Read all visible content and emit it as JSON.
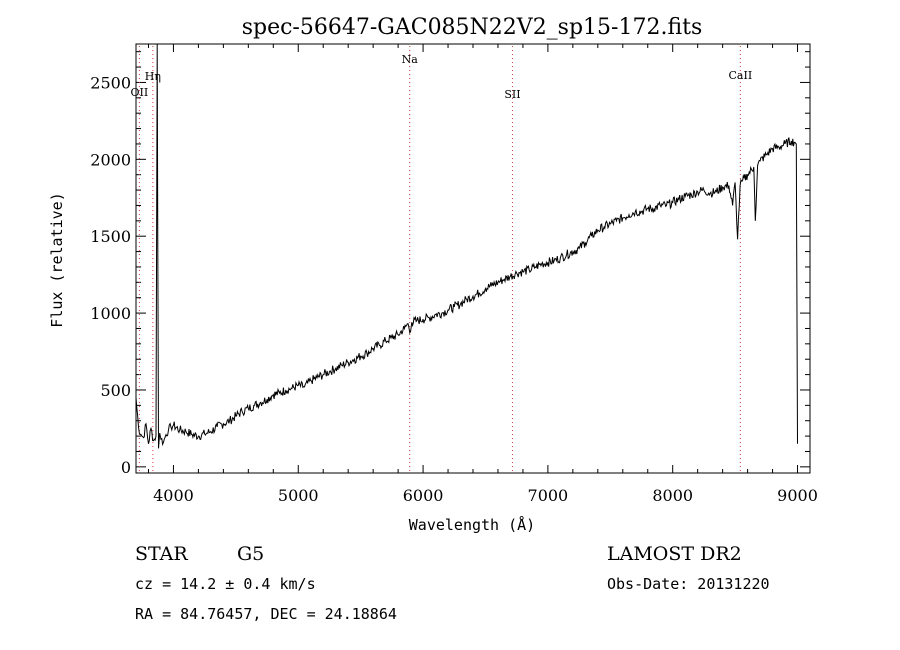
{
  "chart_data": {
    "type": "line",
    "title": "spec-56647-GAC085N22V2_sp15-172.fits",
    "xlabel": "Wavelength (Å)",
    "ylabel": "Flux (relative)",
    "xlim": [
      3700,
      9100
    ],
    "ylim": [
      -40,
      2750
    ],
    "xticks": [
      4000,
      5000,
      6000,
      7000,
      8000,
      9000
    ],
    "yticks": [
      0,
      500,
      1000,
      1500,
      2000,
      2500
    ],
    "grid": false,
    "series": [
      {
        "name": "",
        "x": [
          3700,
          3720,
          3740,
          3760,
          3780,
          3800,
          3820,
          3840,
          3860,
          3870,
          3880,
          3890,
          3900,
          3920,
          3940,
          3960,
          3980,
          4000,
          4050,
          4100,
          4150,
          4200,
          4250,
          4300,
          4350,
          4400,
          4450,
          4500,
          4550,
          4600,
          4650,
          4700,
          4750,
          4800,
          4850,
          4900,
          4950,
          5000,
          5050,
          5100,
          5150,
          5200,
          5250,
          5300,
          5350,
          5400,
          5450,
          5500,
          5550,
          5600,
          5650,
          5700,
          5750,
          5800,
          5850,
          5880,
          5900,
          5910,
          5950,
          6000,
          6050,
          6100,
          6150,
          6200,
          6250,
          6300,
          6350,
          6400,
          6450,
          6500,
          6550,
          6600,
          6650,
          6700,
          6750,
          6800,
          6850,
          6900,
          6950,
          7000,
          7050,
          7100,
          7150,
          7200,
          7250,
          7300,
          7350,
          7400,
          7450,
          7500,
          7550,
          7600,
          7650,
          7700,
          7750,
          7800,
          7850,
          7900,
          7950,
          8000,
          8050,
          8100,
          8150,
          8200,
          8250,
          8300,
          8350,
          8400,
          8450,
          8480,
          8500,
          8520,
          8540,
          8560,
          8600,
          8650,
          8662,
          8680,
          8700,
          8750,
          8800,
          8850,
          8900,
          8950,
          8980,
          8990,
          9000
        ],
        "y": [
          450,
          260,
          210,
          190,
          280,
          150,
          250,
          170,
          200,
          2750,
          120,
          220,
          180,
          160,
          210,
          240,
          260,
          270,
          240,
          230,
          210,
          200,
          215,
          230,
          260,
          280,
          300,
          330,
          360,
          380,
          400,
          420,
          440,
          470,
          480,
          500,
          510,
          530,
          520,
          560,
          580,
          600,
          620,
          640,
          660,
          680,
          700,
          720,
          740,
          770,
          790,
          820,
          840,
          860,
          900,
          930,
          880,
          940,
          950,
          960,
          970,
          990,
          1000,
          1020,
          1040,
          1060,
          1090,
          1110,
          1130,
          1160,
          1180,
          1200,
          1220,
          1240,
          1260,
          1270,
          1280,
          1300,
          1320,
          1330,
          1340,
          1360,
          1380,
          1400,
          1420,
          1460,
          1500,
          1540,
          1560,
          1580,
          1600,
          1620,
          1640,
          1660,
          1660,
          1680,
          1680,
          1700,
          1700,
          1720,
          1740,
          1760,
          1770,
          1790,
          1800,
          1780,
          1790,
          1820,
          1830,
          1700,
          1850,
          1480,
          1830,
          1860,
          1900,
          1950,
          1600,
          1960,
          1990,
          2030,
          2070,
          2080,
          2100,
          2120,
          2110,
          2100,
          150
        ]
      }
    ],
    "lines": [
      {
        "label": "OII",
        "x": 3727
      },
      {
        "label": "Hη",
        "x": 3835
      },
      {
        "label": "Na",
        "x": 5893
      },
      {
        "label": "SII",
        "x": 6716
      },
      {
        "label": "CaII",
        "x": 8542
      }
    ]
  },
  "footer": {
    "object_type": "STAR",
    "subclass": "G5",
    "survey": "LAMOST DR2",
    "redshift": "cz = 14.2 ± 0.4 km/s",
    "obs_date": "Obs-Date: 20131220",
    "coords": "RA =  84.76457, DEC =  24.18864"
  }
}
